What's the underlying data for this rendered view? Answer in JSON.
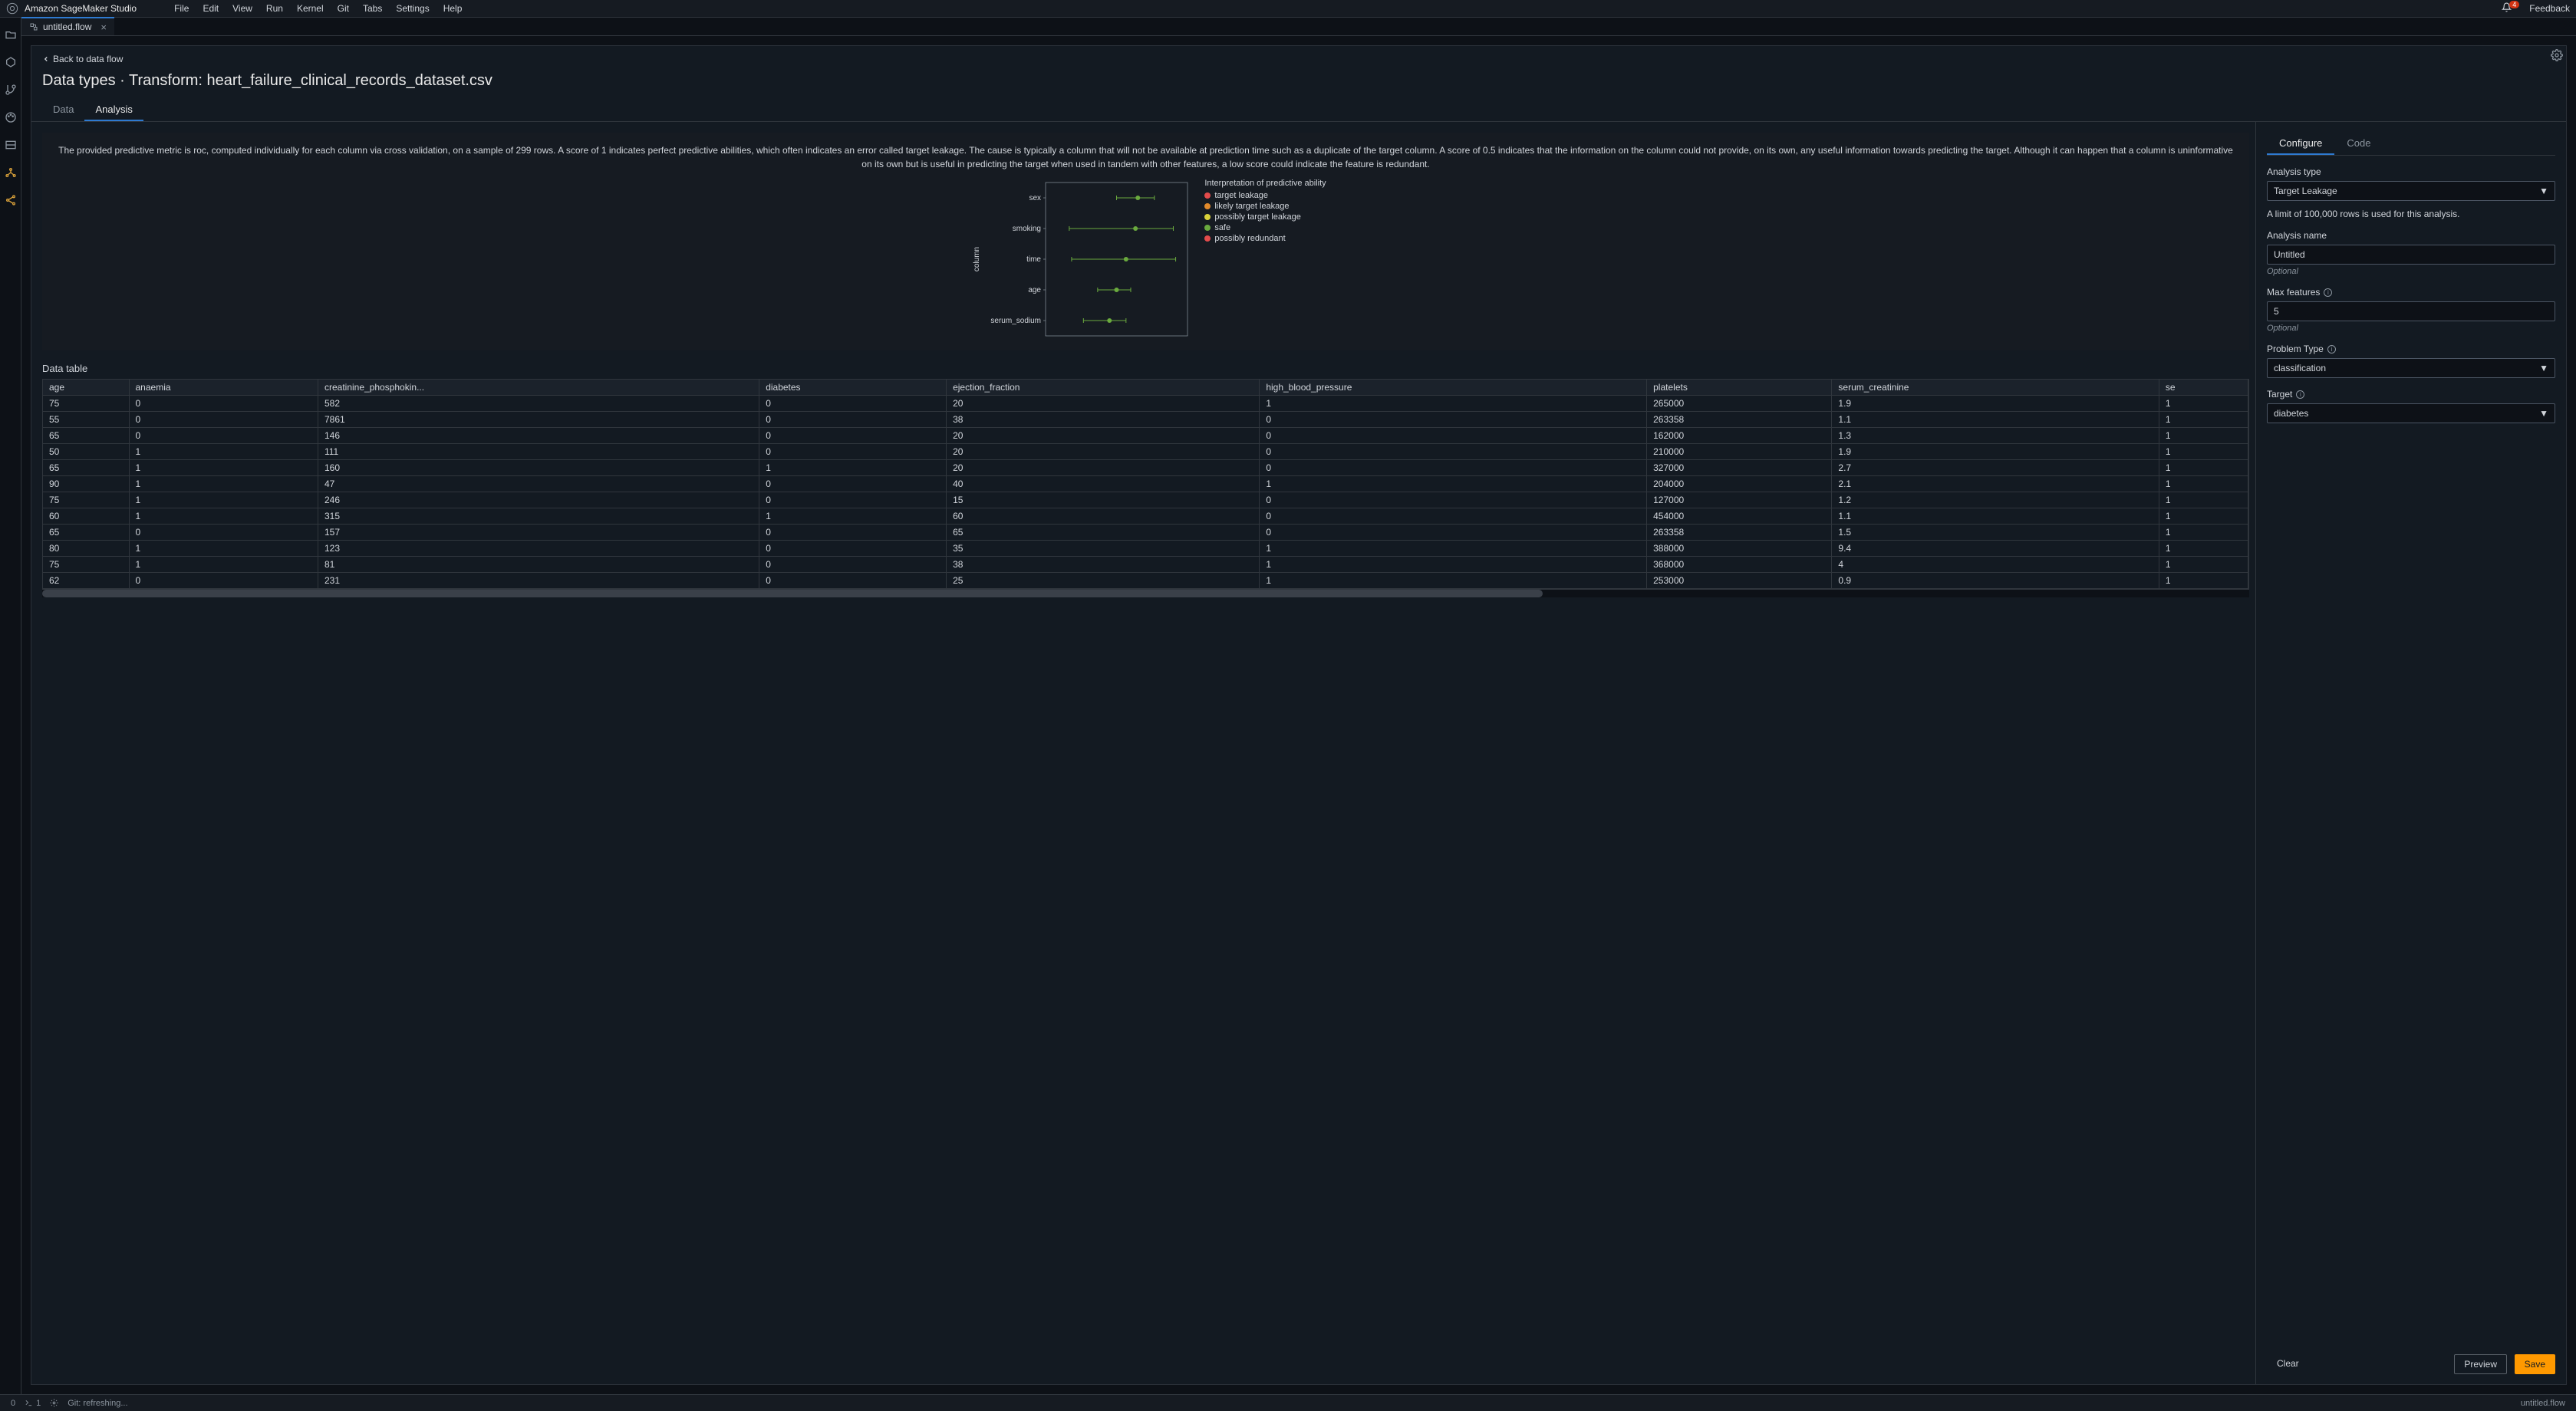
{
  "topbar": {
    "app_title": "Amazon SageMaker Studio",
    "menus": [
      "File",
      "Edit",
      "View",
      "Run",
      "Kernel",
      "Git",
      "Tabs",
      "Settings",
      "Help"
    ],
    "notification_count": "4",
    "feedback": "Feedback"
  },
  "tab": {
    "filename": "untitled.flow"
  },
  "page": {
    "back": "Back to data flow",
    "heading": "Data types · Transform: heart_failure_clinical_records_dataset.csv",
    "tabs": {
      "data": "Data",
      "analysis": "Analysis"
    }
  },
  "analysis_desc": "The provided predictive metric is roc, computed individually for each column via cross validation, on a sample of 299 rows. A score of 1 indicates perfect predictive abilities, which often indicates an error called target leakage. The cause is typically a column that will not be available at prediction time such as a duplicate of the target column. A score of 0.5 indicates that the information on the column could not provide, on its own, any useful information towards predicting the target. Although it can happen that a column is uninformative on its own but is useful in predicting the target when used in tandem with other features, a low score could indicate the feature is redundant.",
  "chart": {
    "ylabel": "column",
    "categories": [
      "sex",
      "smoking",
      "time",
      "age",
      "serum_sodium"
    ],
    "x_range": [
      0.5,
      0.56
    ],
    "points": [
      {
        "x": 0.539,
        "lo": 0.53,
        "hi": 0.546,
        "color": "#6aaa3e"
      },
      {
        "x": 0.538,
        "lo": 0.51,
        "hi": 0.554,
        "color": "#6aaa3e"
      },
      {
        "x": 0.534,
        "lo": 0.511,
        "hi": 0.555,
        "color": "#6aaa3e"
      },
      {
        "x": 0.53,
        "lo": 0.522,
        "hi": 0.536,
        "color": "#6aaa3e"
      },
      {
        "x": 0.527,
        "lo": 0.516,
        "hi": 0.534,
        "color": "#6aaa3e"
      }
    ],
    "bg": "#161b22",
    "axis_color": "#8b949e",
    "tick_color": "#8b949e",
    "legend_title": "Interpretation of predictive ability",
    "legend": [
      {
        "label": "target leakage",
        "color": "#e34b4b"
      },
      {
        "label": "likely target leakage",
        "color": "#e28a2b"
      },
      {
        "label": "possibly target leakage",
        "color": "#d9d23a"
      },
      {
        "label": "safe",
        "color": "#6aaa3e"
      },
      {
        "label": "possibly redundant",
        "color": "#e34b4b"
      }
    ]
  },
  "table": {
    "title": "Data table",
    "columns": [
      "age",
      "anaemia",
      "creatinine_phosphokin...",
      "diabetes",
      "ejection_fraction",
      "high_blood_pressure",
      "platelets",
      "serum_creatinine",
      "se"
    ],
    "rows": [
      [
        "75",
        "0",
        "582",
        "0",
        "20",
        "1",
        "265000",
        "1.9",
        "1"
      ],
      [
        "55",
        "0",
        "7861",
        "0",
        "38",
        "0",
        "263358",
        "1.1",
        "1"
      ],
      [
        "65",
        "0",
        "146",
        "0",
        "20",
        "0",
        "162000",
        "1.3",
        "1"
      ],
      [
        "50",
        "1",
        "111",
        "0",
        "20",
        "0",
        "210000",
        "1.9",
        "1"
      ],
      [
        "65",
        "1",
        "160",
        "1",
        "20",
        "0",
        "327000",
        "2.7",
        "1"
      ],
      [
        "90",
        "1",
        "47",
        "0",
        "40",
        "1",
        "204000",
        "2.1",
        "1"
      ],
      [
        "75",
        "1",
        "246",
        "0",
        "15",
        "0",
        "127000",
        "1.2",
        "1"
      ],
      [
        "60",
        "1",
        "315",
        "1",
        "60",
        "0",
        "454000",
        "1.1",
        "1"
      ],
      [
        "65",
        "0",
        "157",
        "0",
        "65",
        "0",
        "263358",
        "1.5",
        "1"
      ],
      [
        "80",
        "1",
        "123",
        "0",
        "35",
        "1",
        "388000",
        "9.4",
        "1"
      ],
      [
        "75",
        "1",
        "81",
        "0",
        "38",
        "1",
        "368000",
        "4",
        "1"
      ],
      [
        "62",
        "0",
        "231",
        "0",
        "25",
        "1",
        "253000",
        "0.9",
        "1"
      ]
    ]
  },
  "config": {
    "tabs": {
      "configure": "Configure",
      "code": "Code"
    },
    "analysis_type_label": "Analysis type",
    "analysis_type": "Target Leakage",
    "row_limit_note": "A limit of 100,000 rows is used for this analysis.",
    "analysis_name_label": "Analysis name",
    "analysis_name": "Untitled",
    "optional": "Optional",
    "max_features_label": "Max features",
    "max_features": "5",
    "problem_type_label": "Problem Type",
    "problem_type": "classification",
    "target_label": "Target",
    "target": "diabetes",
    "clear": "Clear",
    "preview": "Preview",
    "save": "Save"
  },
  "status": {
    "left_num": "0",
    "terminal_num": "1",
    "git": "Git: refreshing...",
    "right": "untitled.flow"
  }
}
